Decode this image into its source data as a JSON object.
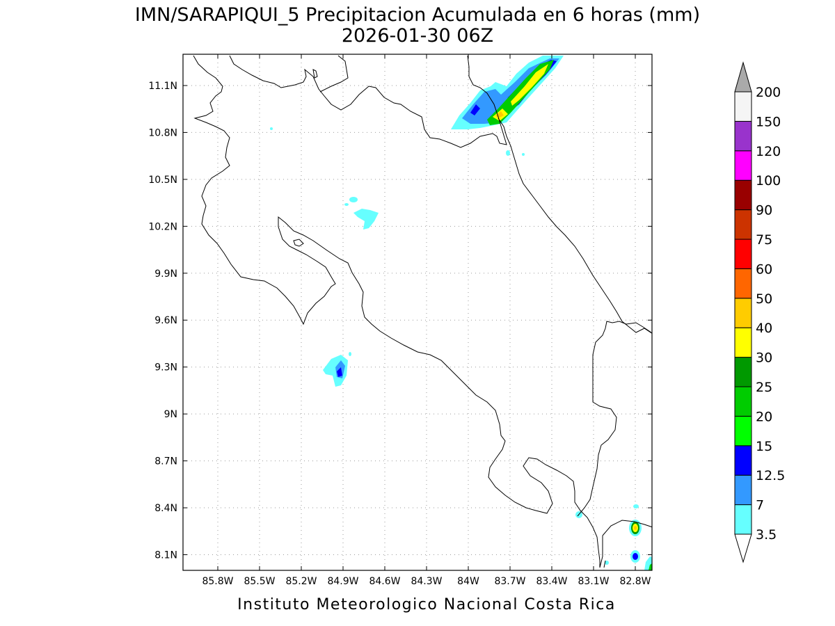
{
  "title": {
    "line1": "IMN/SARAPIQUI_5 Precipitacion Acumulada en 6 horas (mm)",
    "line2": "2026-01-30 06Z"
  },
  "credit": "Instituto Meteorologico Nacional Costa Rica",
  "map": {
    "lon_range": [
      -86.05,
      -82.68
    ],
    "lat_range": [
      8.0,
      11.3
    ],
    "lon_ticks": [
      {
        "value": -85.8,
        "label": "85.8W"
      },
      {
        "value": -85.5,
        "label": "85.5W"
      },
      {
        "value": -85.2,
        "label": "85.2W"
      },
      {
        "value": -84.9,
        "label": "84.9W"
      },
      {
        "value": -84.6,
        "label": "84.6W"
      },
      {
        "value": -84.3,
        "label": "84.3W"
      },
      {
        "value": -84.0,
        "label": "84W"
      },
      {
        "value": -83.7,
        "label": "83.7W"
      },
      {
        "value": -83.4,
        "label": "83.4W"
      },
      {
        "value": -83.1,
        "label": "83.1W"
      },
      {
        "value": -82.8,
        "label": "82.8W"
      }
    ],
    "lat_ticks": [
      {
        "value": 11.1,
        "label": "11.1N"
      },
      {
        "value": 10.8,
        "label": "10.8N"
      },
      {
        "value": 10.5,
        "label": "10.5N"
      },
      {
        "value": 10.2,
        "label": "10.2N"
      },
      {
        "value": 9.9,
        "label": "9.9N"
      },
      {
        "value": 9.6,
        "label": "9.6N"
      },
      {
        "value": 9.3,
        "label": "9.3N"
      },
      {
        "value": 9.0,
        "label": "9N"
      },
      {
        "value": 8.7,
        "label": "8.7N"
      },
      {
        "value": 8.4,
        "label": "8.4N"
      },
      {
        "value": 8.1,
        "label": "8.1N"
      }
    ],
    "grid": true
  },
  "colorbar": {
    "levels": [
      {
        "label": "3.5",
        "color": "#66ffff"
      },
      {
        "label": "7",
        "color": "#3399ff"
      },
      {
        "label": "12.5",
        "color": "#0000ff"
      },
      {
        "label": "15",
        "color": "#00ff00"
      },
      {
        "label": "20",
        "color": "#00cc00"
      },
      {
        "label": "25",
        "color": "#009900"
      },
      {
        "label": "30",
        "color": "#ffff00"
      },
      {
        "label": "40",
        "color": "#ffcc00"
      },
      {
        "label": "50",
        "color": "#ff6600"
      },
      {
        "label": "60",
        "color": "#ff0000"
      },
      {
        "label": "75",
        "color": "#cc3300"
      },
      {
        "label": "90",
        "color": "#990000"
      },
      {
        "label": "100",
        "color": "#ff00ff"
      },
      {
        "label": "120",
        "color": "#9933cc"
      },
      {
        "label": "150",
        "color": "#f5f5f5"
      },
      {
        "label": "200",
        "color": "#aaaaaa"
      }
    ],
    "below_color": "#ffffff",
    "above_color": "#aaaaaa"
  }
}
